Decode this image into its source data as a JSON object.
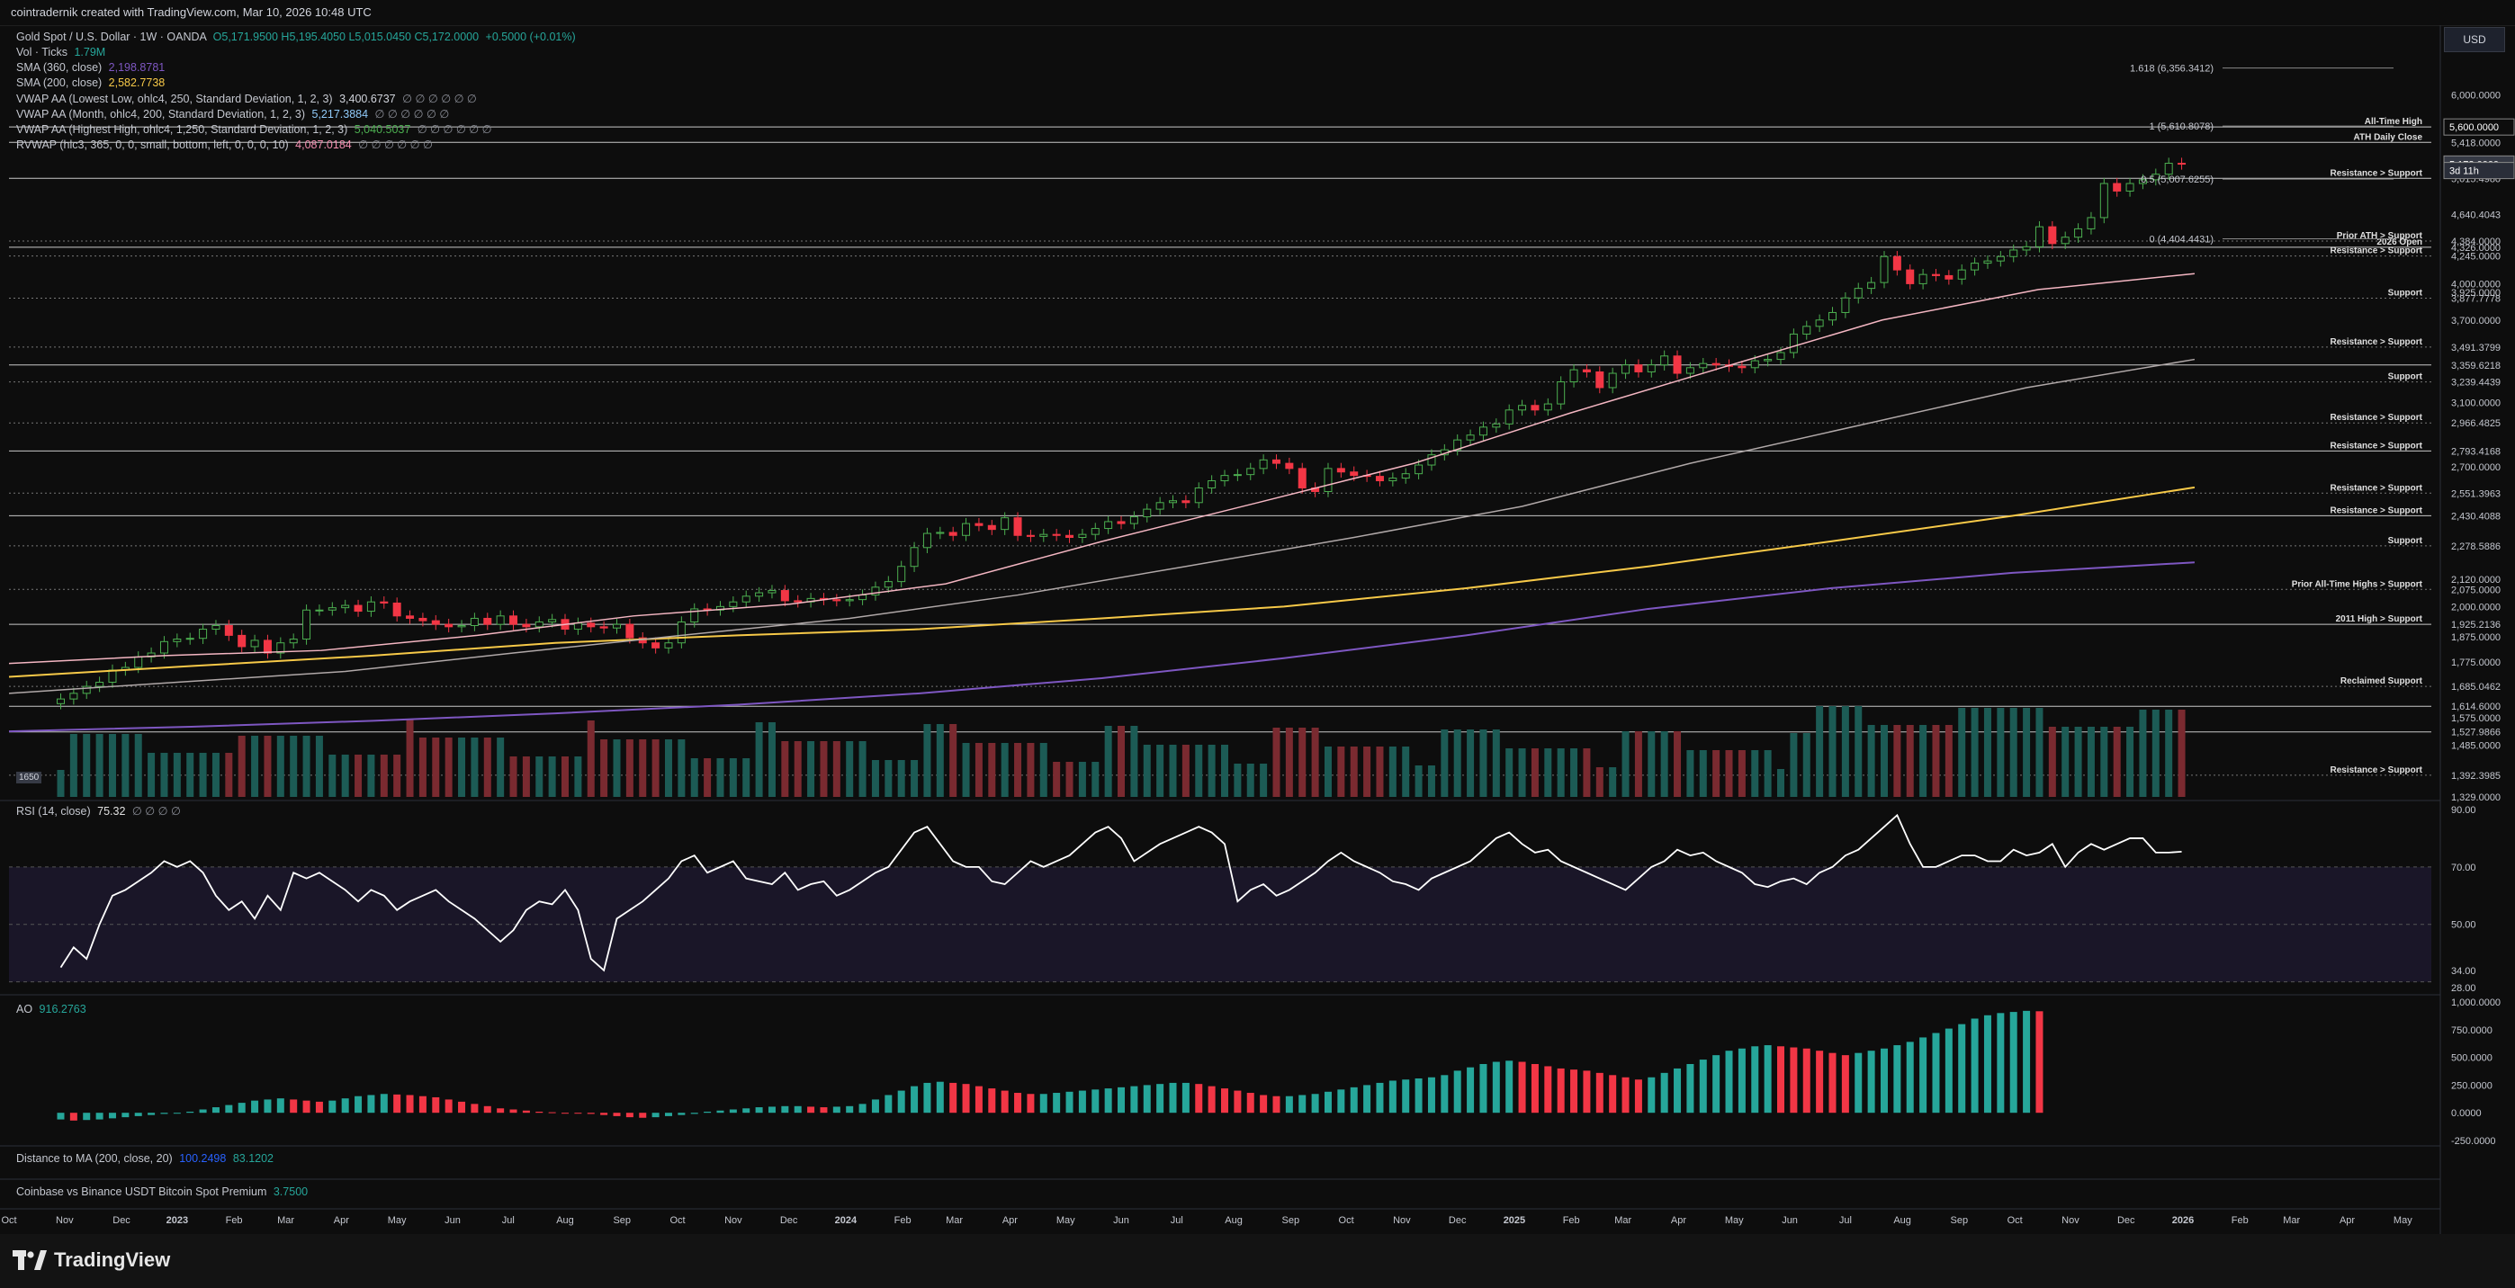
{
  "topbar": {
    "text": "cointradernik created with TradingView.com, Mar 10, 2026 10:48 UTC"
  },
  "brand": {
    "name": "TradingView"
  },
  "currency": "USD",
  "legend": {
    "symbol": "Gold Spot / U.S. Dollar · 1W · OANDA",
    "ohlc": "O5,171.9500 H5,195.4050 L5,015.0450 C5,172.0000",
    "change": "+0.5000 (+0.01%)",
    "vol_label": "Vol · Ticks",
    "vol_value": "1.79M",
    "sma360_label": "SMA (360, close)",
    "sma360_value": "2,198.8781",
    "sma200_label": "SMA (200, close)",
    "sma200_value": "2,582.7738",
    "vwap_low_label": "VWAP AA (Lowest Low, ohlc4, 250, Standard Deviation, 1, 2, 3)",
    "vwap_low_value": "3,400.6737",
    "vwap_month_label": "VWAP AA (Month, ohlc4, 200, Standard Deviation, 1, 2, 3)",
    "vwap_month_value": "5,217.3884",
    "vwap_high_label": "VWAP AA (Highest High, ohlc4, 1,250, Standard Deviation, 1, 2, 3)",
    "vwap_high_value": "5,040.5037",
    "rvwap_label": "RVWAP (hlc3, 365, 0, 0, small, bottom, left, 0, 0, 0, 10)",
    "rvwap_value": "4,087.0184",
    "dots": "∅ ∅ ∅ ∅ ∅ ∅",
    "vol_badge": "1650"
  },
  "rsi": {
    "label": "RSI (14, close)",
    "value": "75.32",
    "dots": "∅ ∅ ∅ ∅"
  },
  "ao": {
    "label": "AO",
    "value": "916.2763"
  },
  "dist_ma": {
    "label": "Distance to MA (200, close, 20)",
    "value1": "100.2498",
    "value2": "83.1202"
  },
  "coinbase": {
    "label": "Coinbase vs Binance USDT Bitcoin Spot Premium",
    "value": "3.7500"
  },
  "fib": [
    {
      "text": "1.618 (6,356.3412)"
    },
    {
      "text": "1 (5,610.8078)"
    },
    {
      "text": "0.5 (5,007.6255)"
    },
    {
      "text": "0 (4,404.4431)"
    }
  ],
  "chart_data": {
    "type": "candlestick",
    "title": "Gold Spot / U.S. Dollar · 1W · OANDA",
    "scale": "log",
    "price_axis": [
      "6,000.0000",
      "5,418.0000",
      "5,015.4980",
      "4,640.4043",
      "4,384.0000",
      "4,326.0000",
      "4,245.0000",
      "4,000.0000",
      "3,925.0000",
      "3,877.7778",
      "3,700.0000",
      "3,491.3799",
      "3,359.6218",
      "3,239.4439",
      "3,100.0000",
      "2,966.4825",
      "2,793.4168",
      "2,700.0000",
      "2,551.3963",
      "2,430.4088",
      "2,278.5886",
      "2,120.0000",
      "2,075.0000",
      "2,000.0000",
      "1,925.2136",
      "1,875.0000",
      "1,775.0000",
      "1,685.0462",
      "1,614.6000",
      "1,575.0000",
      "1,527.9866",
      "1,485.0000",
      "1,392.3985",
      "1,329.0000"
    ],
    "price_axis_values": [
      6000,
      5418,
      5015.498,
      4640.4043,
      4384,
      4326,
      4245,
      4000,
      3925,
      3877.7778,
      3700,
      3491.3799,
      3359.6218,
      3239.4439,
      3100,
      2966.4825,
      2793.4168,
      2700,
      2551.3963,
      2430.4088,
      2278.5886,
      2120,
      2075,
      2000,
      1925.2136,
      1875,
      1775,
      1685.0462,
      1614.6,
      1575,
      1527.9866,
      1485,
      1392.3985,
      1329
    ],
    "price_tags": [
      {
        "value": 5600,
        "text": "5,600.0000"
      },
      {
        "value": 5172,
        "text": "5,172.0000"
      },
      {
        "value": 5100,
        "text": "3d 11h"
      }
    ],
    "ylim": [
      1329,
      6500
    ],
    "time_axis": [
      "Oct",
      "Nov",
      "Dec",
      "2023",
      "Feb",
      "Mar",
      "Apr",
      "May",
      "Jun",
      "Jul",
      "Aug",
      "Sep",
      "Oct",
      "Nov",
      "Dec",
      "2024",
      "Feb",
      "Mar",
      "Apr",
      "May",
      "Jun",
      "Jul",
      "Aug",
      "Sep",
      "Oct",
      "Nov",
      "Dec",
      "2025",
      "Feb",
      "Mar",
      "Apr",
      "May",
      "Jun",
      "Jul",
      "Aug",
      "Sep",
      "Oct",
      "Nov",
      "Dec",
      "2026",
      "Feb",
      "Mar",
      "Apr",
      "May"
    ],
    "time_axis_weeks": [
      0,
      4.3,
      8.7,
      13,
      17.4,
      21.4,
      25.7,
      30,
      34.3,
      38.6,
      43,
      47.4,
      51.7,
      56,
      60.3,
      64.7,
      69.1,
      73.1,
      77.4,
      81.7,
      86,
      90.3,
      94.7,
      99.1,
      103.4,
      107.7,
      112,
      116.4,
      120.8,
      124.8,
      129.1,
      133.4,
      137.7,
      142,
      146.4,
      150.8,
      155.1,
      159.4,
      163.7,
      168.1,
      172.5,
      176.5,
      180.8,
      185.1
    ],
    "closes": [
      1640,
      1660,
      1685,
      1700,
      1745,
      1755,
      1795,
      1810,
      1855,
      1865,
      1868,
      1905,
      1920,
      1880,
      1835,
      1860,
      1810,
      1850,
      1865,
      1985,
      1985,
      1995,
      2005,
      1980,
      2020,
      2015,
      1960,
      1950,
      1940,
      1925,
      1915,
      1920,
      1950,
      1925,
      1960,
      1925,
      1915,
      1935,
      1945,
      1905,
      1930,
      1915,
      1910,
      1925,
      1870,
      1850,
      1830,
      1850,
      1935,
      1990,
      1985,
      2000,
      2020,
      2045,
      2060,
      2070,
      2025,
      2020,
      2035,
      2030,
      2025,
      2030,
      2050,
      2085,
      2110,
      2180,
      2270,
      2340,
      2345,
      2330,
      2390,
      2380,
      2360,
      2420,
      2330,
      2325,
      2335,
      2330,
      2320,
      2335,
      2365,
      2400,
      2390,
      2425,
      2465,
      2500,
      2510,
      2500,
      2580,
      2620,
      2650,
      2655,
      2690,
      2740,
      2720,
      2690,
      2580,
      2560,
      2690,
      2670,
      2650,
      2645,
      2620,
      2635,
      2660,
      2710,
      2770,
      2800,
      2860,
      2890,
      2940,
      2960,
      3050,
      3080,
      3050,
      3090,
      3240,
      3325,
      3310,
      3200,
      3300,
      3360,
      3310,
      3360,
      3425,
      3300,
      3340,
      3370,
      3360,
      3350,
      3340,
      3390,
      3400,
      3450,
      3590,
      3650,
      3700,
      3760,
      3880,
      3960,
      4010,
      4240,
      4120,
      4000,
      4080,
      4070,
      4040,
      4120,
      4180,
      4200,
      4240,
      4300,
      4330,
      4520,
      4360,
      4420,
      4500,
      4610,
      4960,
      4880,
      4960,
      5000,
      5060,
      5180,
      5172
    ],
    "sma200": {
      "name": "SMA (200, close)",
      "start_week": 0,
      "values": [
        1720,
        1760,
        1800,
        1850,
        1880,
        1905,
        1950,
        2000,
        2080,
        2180,
        2300,
        2430,
        2583
      ]
    },
    "sma360": {
      "name": "SMA (360, close)",
      "start_week": 0,
      "values": [
        1530,
        1545,
        1565,
        1590,
        1620,
        1660,
        1715,
        1790,
        1880,
        1990,
        2080,
        2150,
        2199
      ]
    },
    "rvwap": {
      "name": "RVWAP",
      "start_week": 0,
      "values": [
        1770,
        1800,
        1820,
        1880,
        1960,
        2010,
        2100,
        2300,
        2500,
        2720,
        3030,
        3350,
        3700,
        3950,
        4087
      ]
    },
    "vwap_low": {
      "name": "VWAP AA (Lowest Low)",
      "start_week": 0,
      "values": [
        1660,
        1700,
        1740,
        1810,
        1880,
        1950,
        2050,
        2180,
        2320,
        2480,
        2720,
        2950,
        3200,
        3400
      ]
    },
    "levels": [
      {
        "price": 5600,
        "label": "All-Time High",
        "style": "solid"
      },
      {
        "price": 5418,
        "label": "ATH Daily Close",
        "style": "solid"
      },
      {
        "price": 5015,
        "label": "Resistance > Support",
        "style": "solid"
      },
      {
        "price": 4384,
        "label": "Prior ATH > Support",
        "style": "dotted"
      },
      {
        "price": 4326,
        "label": "2026 Open",
        "style": "solid"
      },
      {
        "price": 4245,
        "label": "Resistance > Support",
        "style": "dotted"
      },
      {
        "price": 3877.78,
        "label": "Support",
        "style": "dotted"
      },
      {
        "price": 3491.38,
        "label": "Resistance > Support",
        "style": "dotted"
      },
      {
        "price": 3359.62,
        "label": "",
        "style": "solid"
      },
      {
        "price": 3239.44,
        "label": "Support",
        "style": "dotted"
      },
      {
        "price": 2966.48,
        "label": "Resistance > Support",
        "style": "dotted"
      },
      {
        "price": 2793.42,
        "label": "Resistance > Support",
        "style": "solid"
      },
      {
        "price": 2551.4,
        "label": "Resistance > Support",
        "style": "dotted"
      },
      {
        "price": 2430.41,
        "label": "Resistance > Support",
        "style": "solid"
      },
      {
        "price": 2278.59,
        "label": "Support",
        "style": "dotted"
      },
      {
        "price": 2075,
        "label": "Prior All-Time Highs > Support",
        "style": "dotted"
      },
      {
        "price": 1925.21,
        "label": "2011 High > Support",
        "style": "solid"
      },
      {
        "price": 1685.05,
        "label": "Reclaimed Support",
        "style": "dotted"
      },
      {
        "price": 1614.6,
        "label": "",
        "style": "solid"
      },
      {
        "price": 1527.99,
        "label": "",
        "style": "solid"
      },
      {
        "price": 1392.4,
        "label": "Resistance > Support",
        "style": "dotted"
      }
    ],
    "rsi": {
      "ylim": [
        28,
        90
      ],
      "ticks": [
        "90.00",
        "70.00",
        "50.00",
        "34.00",
        "28.00"
      ],
      "tick_values": [
        90,
        70,
        50,
        34,
        28
      ],
      "values": [
        35,
        42,
        38,
        50,
        60,
        62,
        65,
        68,
        72,
        70,
        72,
        68,
        60,
        55,
        58,
        52,
        60,
        55,
        68,
        66,
        68,
        65,
        62,
        58,
        62,
        60,
        55,
        58,
        60,
        62,
        58,
        55,
        52,
        48,
        44,
        48,
        55,
        58,
        57,
        62,
        55,
        38,
        34,
        52,
        55,
        58,
        62,
        66,
        72,
        74,
        68,
        70,
        72,
        66,
        65,
        64,
        68,
        62,
        64,
        65,
        60,
        62,
        65,
        68,
        70,
        76,
        82,
        84,
        78,
        72,
        70,
        70,
        65,
        64,
        68,
        72,
        70,
        72,
        74,
        78,
        82,
        84,
        80,
        72,
        75,
        78,
        80,
        82,
        84,
        82,
        78,
        58,
        62,
        64,
        60,
        62,
        65,
        68,
        72,
        75,
        72,
        70,
        68,
        65,
        64,
        62,
        66,
        68,
        70,
        72,
        76,
        80,
        82,
        78,
        75,
        76,
        72,
        70,
        68,
        66,
        64,
        62,
        66,
        70,
        72,
        76,
        74,
        75,
        72,
        70,
        68,
        64,
        63,
        65,
        66,
        64,
        68,
        70,
        74,
        76,
        80,
        84,
        88,
        78,
        70,
        70,
        72,
        74,
        74,
        72,
        72,
        76,
        74,
        75,
        78,
        70,
        75,
        78,
        76,
        78,
        80,
        80,
        75,
        75,
        75.32
      ]
    },
    "ao": {
      "ylim": [
        -250,
        1000
      ],
      "ticks": [
        "1,000.0000",
        "750.0000",
        "500.0000",
        "250.0000",
        "0.0000",
        "-250.0000"
      ],
      "tick_values": [
        1000,
        750,
        500,
        250,
        0,
        -250
      ],
      "values": [
        -60,
        -70,
        -65,
        -60,
        -50,
        -40,
        -30,
        -20,
        -10,
        0,
        10,
        30,
        50,
        70,
        90,
        110,
        120,
        130,
        120,
        110,
        100,
        110,
        130,
        150,
        160,
        170,
        165,
        160,
        150,
        140,
        120,
        100,
        80,
        60,
        40,
        30,
        20,
        10,
        5,
        0,
        -5,
        -10,
        -20,
        -30,
        -40,
        -45,
        -40,
        -30,
        -20,
        -10,
        10,
        20,
        30,
        40,
        50,
        55,
        60,
        60,
        55,
        50,
        55,
        60,
        80,
        120,
        160,
        200,
        240,
        270,
        280,
        270,
        260,
        240,
        220,
        200,
        180,
        170,
        170,
        180,
        190,
        200,
        210,
        220,
        230,
        240,
        250,
        260,
        270,
        270,
        260,
        240,
        220,
        200,
        180,
        160,
        150,
        150,
        160,
        170,
        190,
        210,
        230,
        250,
        270,
        290,
        300,
        310,
        320,
        340,
        380,
        410,
        440,
        460,
        470,
        460,
        440,
        420,
        400,
        390,
        380,
        360,
        340,
        320,
        300,
        320,
        360,
        400,
        440,
        480,
        520,
        560,
        580,
        600,
        610,
        600,
        590,
        580,
        560,
        540,
        520,
        540,
        560,
        580,
        610,
        640,
        680,
        720,
        760,
        800,
        850,
        880,
        900,
        910,
        920,
        916.28
      ]
    }
  }
}
